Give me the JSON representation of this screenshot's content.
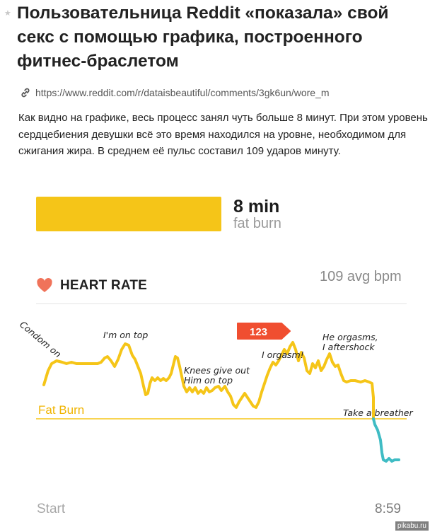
{
  "article": {
    "title": "Пользовательница Reddit «показала» свой секс с помощью графика, построенного фитнес-браслетом",
    "source_url": "https://www.reddit.com/r/dataisbeautiful/comments/3gk6un/wore_m",
    "description": "Как видно на графике, весь процесс занял чуть больше 8 минут. При этом уровень сердцебиения девушки всё это время находился на уровне, необходимом для сжигания жира. В среднем её пульс составил 109 ударов минуту."
  },
  "fat_burn_summary": {
    "value": "8 min",
    "label": "fat burn",
    "color": "#f5c518"
  },
  "heart_rate": {
    "title": "HEART RATE",
    "avg": "109 avg bpm",
    "peak_bubble": "123",
    "zone_label": "Fat Burn",
    "annotations": {
      "condom": "Condom on",
      "on_top": "I'm on top",
      "knees_1": "Knees give out",
      "knees_2": "Him on top",
      "orgasm": "I orgasm!",
      "he_1": "He orgasms,",
      "he_2": "I aftershock",
      "breather": "Take a breather"
    },
    "axis_start": "Start",
    "axis_end": "8:59",
    "colors": {
      "line_fat_burn": "#f5c518",
      "line_below": "#3fbcc4",
      "zone_line": "#f5c518",
      "bubble": "#f04e30",
      "heart": "#f0735a"
    }
  },
  "watermark": "pikabu.ru"
}
